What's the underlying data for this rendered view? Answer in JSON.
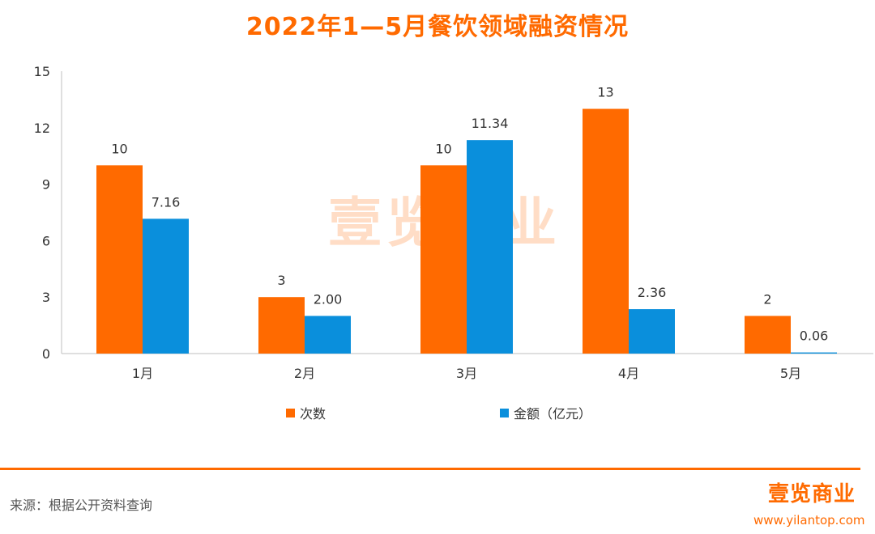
{
  "title": "2022年1—5月餐饮领域融资情况",
  "colors": {
    "accent": "#ff6a00",
    "count": "#ff6a00",
    "amount": "#0a8fdc",
    "axis": "#bfbfbf",
    "text": "#333333"
  },
  "chart_data": {
    "type": "bar",
    "title": "2022年1—5月餐饮领域融资情况",
    "categories": [
      "1月",
      "2月",
      "3月",
      "4月",
      "5月"
    ],
    "series": [
      {
        "name": "次数",
        "values": [
          10,
          3,
          10,
          13,
          2
        ],
        "labels": [
          "10",
          "3",
          "10",
          "13",
          "2"
        ]
      },
      {
        "name": "金额（亿元）",
        "values": [
          7.16,
          2.0,
          11.34,
          2.36,
          0.06
        ],
        "labels": [
          "7.16",
          "2.00",
          "11.34",
          "2.36",
          "0.06"
        ]
      }
    ],
    "ylim": [
      0,
      15
    ],
    "yticks": [
      "0",
      "3",
      "6",
      "9",
      "12",
      "15"
    ],
    "xlabel": "",
    "ylabel": "",
    "grid": false,
    "legend": "bottom"
  },
  "legend": [
    "次数",
    "金额（亿元）"
  ],
  "footer": {
    "source": "来源：根据公开资料查询",
    "logo": "壹览商业",
    "site": "www.yilantop.com"
  },
  "watermark": "壹览商业"
}
